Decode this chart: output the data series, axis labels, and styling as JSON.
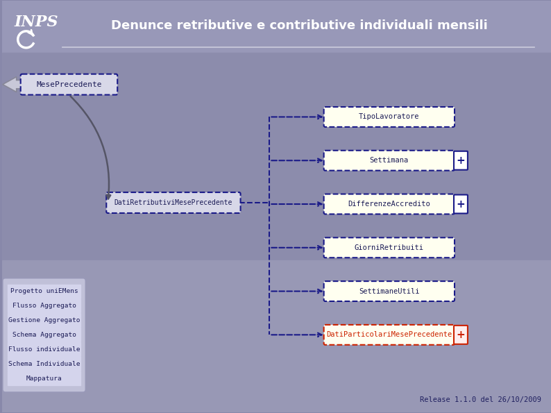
{
  "title": "Denunce retributive e contributive individuali mensili",
  "release_text": "Release 1.1.0 del 26/10/2009",
  "mese_precedente_label": "MesePrecedente",
  "dati_retributivi_label": "DatiRetributiviMesePrecedente",
  "right_nodes": [
    {
      "label": "TipoLavoratore",
      "has_plus": false,
      "red": false
    },
    {
      "label": "Settimana",
      "has_plus": true,
      "red": false
    },
    {
      "label": "DifferenzeAccredito",
      "has_plus": true,
      "red": false
    },
    {
      "label": "GiorniRetribuiti",
      "has_plus": false,
      "red": false
    },
    {
      "label": "SettimaneUtili",
      "has_plus": false,
      "red": false
    },
    {
      "label": "DatiParticolariMesePrecedente",
      "has_plus": true,
      "red": true
    }
  ],
  "sidebar_items": [
    "Progetto uniEMens",
    "Flusso Aggregato",
    "Gestione Aggregato",
    "Schema Aggregato",
    "Flusso individuale",
    "Schema Individuale",
    "Mappatura"
  ],
  "bg_top": "#9898b8",
  "bg_mid": "#8888aa",
  "bg_bot": "#9090b0",
  "header_line_color": "#ccccdd",
  "node_fill": "#fffff0",
  "node_border_blue": "#1a1a88",
  "node_border_red": "#cc2200",
  "node_text_normal": "#1a1a55",
  "node_text_red": "#cc2200",
  "sidebar_bg": "#c0c0d8",
  "sidebar_item_bg": "#d4d4ec",
  "sidebar_text": "#1a1a55",
  "mese_box_fill": "#d8d8e8",
  "dati_box_fill": "#d8d8e8",
  "connector_color": "#1a1a88",
  "curve_color": "#555566",
  "title_color": "#ffffff",
  "release_color": "#202060"
}
